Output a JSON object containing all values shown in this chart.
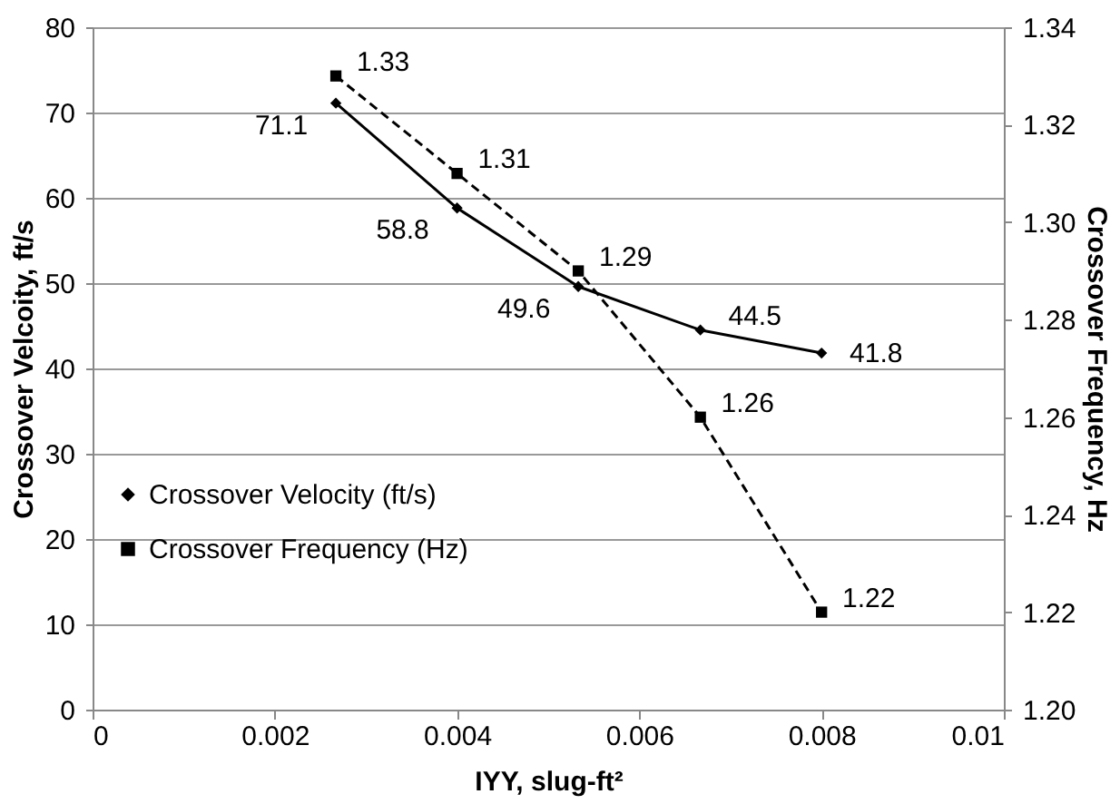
{
  "chart_data": {
    "type": "line",
    "xlabel": "IYY, slug-ft²",
    "ylabel": "Crossover Velcoity, ft/s",
    "y2label": "Crossover Frequency, Hz",
    "x": [
      0.00267,
      0.004,
      0.00533,
      0.00667,
      0.008
    ],
    "series": [
      {
        "name": "Crossover Velocity (ft/s)",
        "color": "#000000",
        "values": [
          71.1,
          58.8,
          49.6,
          44.5,
          41.8
        ],
        "marker": "diamond",
        "line_style": "solid"
      },
      {
        "name": "Crossover Frequency (Hz)",
        "color": "#000000",
        "values": [
          1.33,
          1.31,
          1.29,
          1.26,
          1.22
        ],
        "marker": "square",
        "line_style": "dashed",
        "axis": "y2"
      }
    ],
    "xlim": [
      0,
      0.01
    ],
    "xticks": [
      0,
      0.002,
      0.004,
      0.006,
      0.008,
      0.01
    ],
    "ylim": [
      0,
      80
    ],
    "yticks": [
      0,
      10,
      20,
      30,
      40,
      50,
      60,
      70,
      80
    ],
    "y2lim": [
      1.2,
      1.34
    ],
    "y2ticks": [
      {
        "value": 1.2,
        "label": "1.20"
      },
      {
        "value": 1.22,
        "label": "1.22"
      },
      {
        "value": 1.24,
        "label": "1.24"
      },
      {
        "value": 1.26,
        "label": "1.26"
      },
      {
        "value": 1.28,
        "label": "1.28"
      },
      {
        "value": 1.3,
        "label": "1.30"
      },
      {
        "value": 1.32,
        "label": "1.32"
      },
      {
        "value": 1.34,
        "label": "1.34"
      }
    ],
    "grid": "y",
    "legend": "bottom left",
    "data_labels": true
  }
}
